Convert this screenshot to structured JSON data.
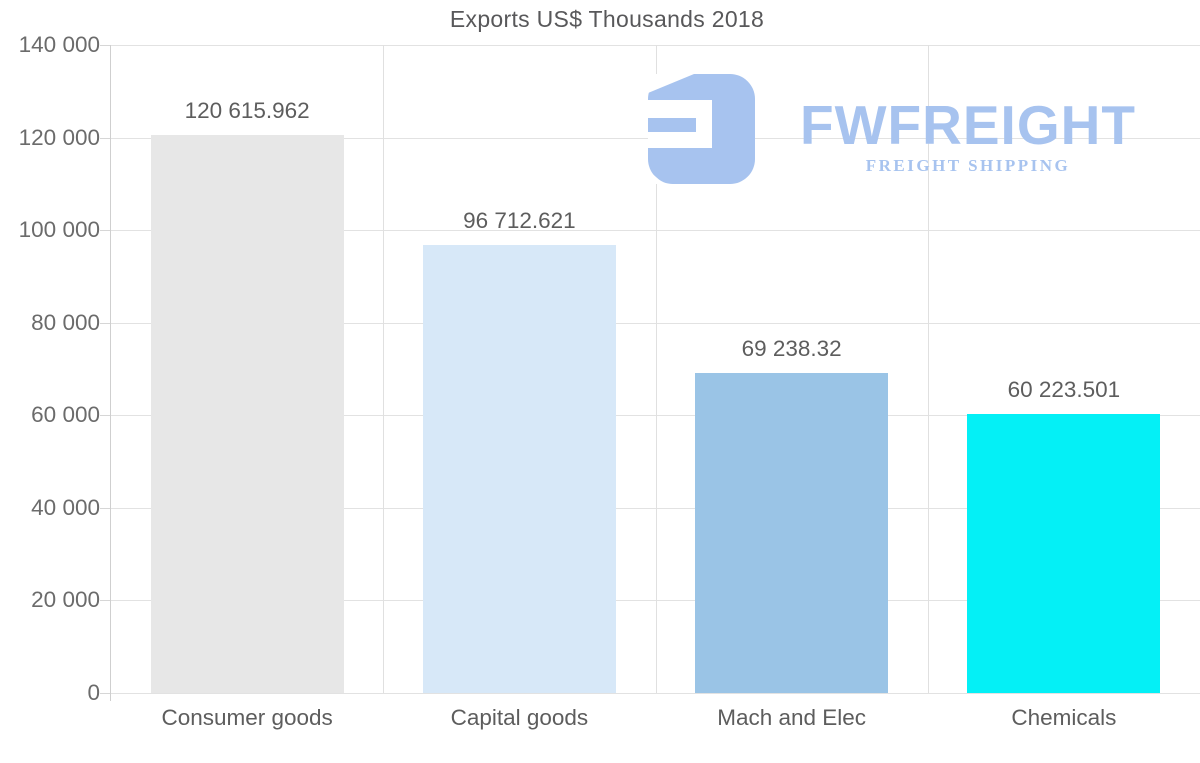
{
  "logo": {
    "name": "FWFREIGHT",
    "tagline": "FREIGHT SHIPPING",
    "color": "#a7c3ef"
  },
  "chart_data": {
    "type": "bar",
    "title": "Exports US$ Thousands 2018",
    "categories": [
      "Consumer goods",
      "Capital goods",
      "Mach and Elec",
      "Chemicals"
    ],
    "values": [
      120615.962,
      96712.621,
      69238.32,
      60223.501
    ],
    "value_labels": [
      "120 615.962",
      "96 712.621",
      "69 238.32",
      "60 223.501"
    ],
    "bar_colors": [
      "#e7e7e7",
      "#d7e8f8",
      "#9ac4e6",
      "#04f0f6"
    ],
    "xlabel": "",
    "ylabel": "",
    "ylim": [
      0,
      140000
    ],
    "ytick_step": 20000,
    "ytick_labels": [
      "0",
      "20 000",
      "40 000",
      "60 000",
      "80 000",
      "100 000",
      "120 000",
      "140 000"
    ],
    "grid": true,
    "legend": false,
    "text_color": "#5d5d5d",
    "grid_color": "#e2e2e2"
  }
}
